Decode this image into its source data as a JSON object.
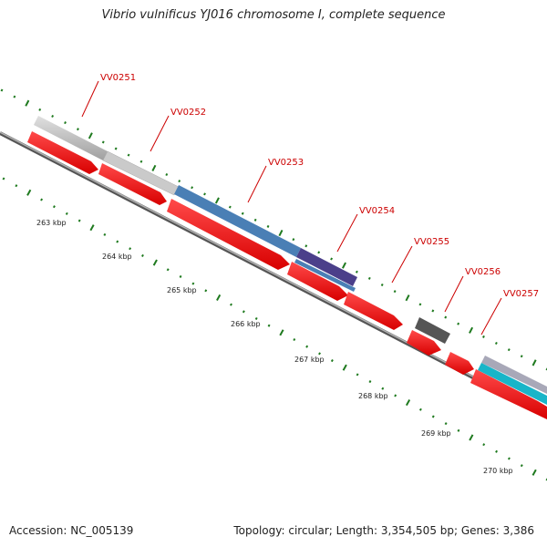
{
  "title": "Vibrio vulnificus YJ016 chromosome I, complete sequence",
  "accession": "Accession: NC_005139",
  "summary": "Topology: circular; Length: 3,354,505 bp; Genes: 3,386",
  "ruler": {
    "kbp_labels": [
      "263 kbp",
      "264 kbp",
      "265 kbp",
      "266 kbp",
      "267 kbp",
      "268 kbp",
      "269 kbp",
      "270 kbp"
    ]
  },
  "genes": [
    {
      "label": "VV0251",
      "feature_color": "#bdbdbd"
    },
    {
      "label": "VV0252",
      "feature_color": "#c8c8c8"
    },
    {
      "label": "VV0253",
      "feature_color": "#4a7fb5"
    },
    {
      "label": "VV0254",
      "feature_color": "#4b3f8a"
    },
    {
      "label": "VV0255",
      "feature_color": "#ff0000"
    },
    {
      "label": "VV0256",
      "feature_color": "#555555"
    },
    {
      "label": "VV0257",
      "feature_color": "#19b5c8"
    }
  ],
  "colors": {
    "gene": "#ff0000",
    "label": "#cc0000",
    "tick": "#1f7a1f",
    "backbone": "#888888"
  }
}
